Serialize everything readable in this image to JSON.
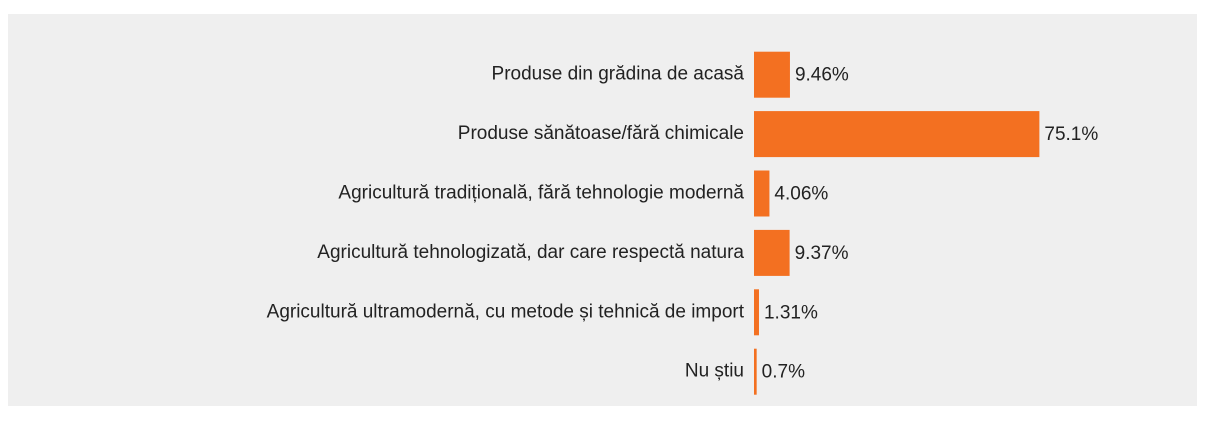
{
  "chart_data": {
    "type": "bar",
    "orientation": "horizontal",
    "categories": [
      "Produse din grădina de acasă",
      "Produse sănătoase/fără chimicale",
      "Agricultură tradițională, fără tehnologie modernă",
      "Agricultură tehnologizată, dar care respectă natura",
      "Agricultură ultramodernă, cu metode și tehnică de import",
      "Nu știu"
    ],
    "values": [
      9.46,
      75.1,
      4.06,
      9.37,
      1.31,
      0.7
    ],
    "value_labels": [
      "9.46%",
      "75.1%",
      "4.06%",
      "9.37%",
      "1.31%",
      "0.7%"
    ],
    "color": "#f37021"
  }
}
